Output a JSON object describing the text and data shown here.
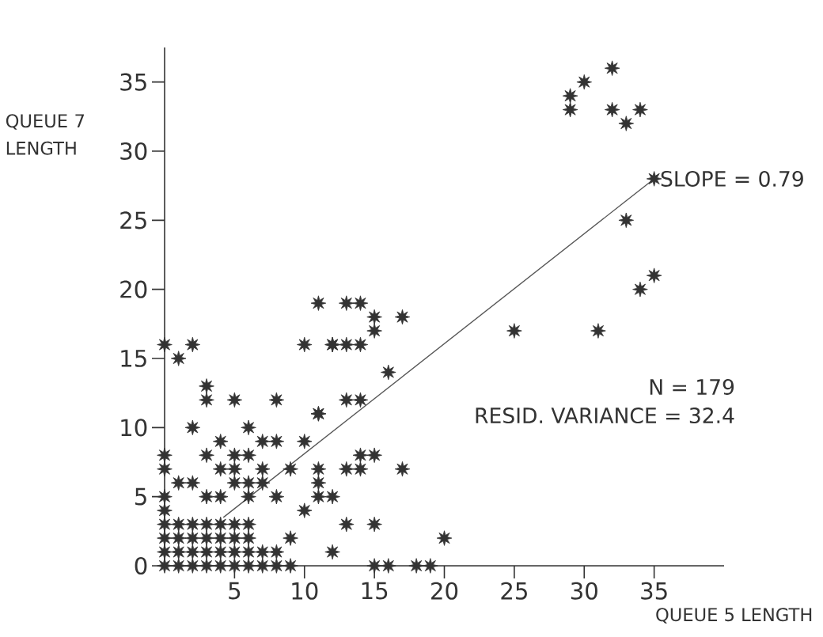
{
  "chart_data": {
    "type": "scatter",
    "xlabel": "QUEUE 5 LENGTH",
    "ylabel": "QUEUE 7 LENGTH",
    "xlim": [
      0,
      40
    ],
    "ylim": [
      0,
      37.5
    ],
    "xticks": [
      5,
      10,
      15,
      20,
      25,
      30,
      35
    ],
    "yticks": [
      0,
      5,
      10,
      15,
      20,
      25,
      30,
      35
    ],
    "grid": false,
    "series": [
      {
        "color": "#333333",
        "marker": "star",
        "x": [
          0,
          2,
          1,
          3,
          3,
          5,
          8,
          2,
          11,
          10,
          12,
          6,
          4,
          7,
          8,
          10,
          0,
          0,
          3,
          5,
          6,
          4,
          5,
          7,
          9,
          1,
          2,
          5,
          6,
          7,
          0,
          3,
          4,
          6,
          8,
          0,
          0,
          1,
          2,
          3,
          4,
          5,
          6,
          0,
          1,
          2,
          3,
          4,
          5,
          6,
          0,
          1,
          2,
          3,
          4,
          5,
          6,
          7,
          8,
          0,
          1,
          2,
          3,
          4,
          5,
          6,
          7,
          8,
          9,
          9,
          10,
          11,
          13,
          14,
          15,
          15,
          17,
          12,
          13,
          14,
          16,
          13,
          14,
          11,
          14,
          15,
          11,
          13,
          14,
          17,
          11,
          11,
          12,
          12,
          13,
          15,
          15,
          16,
          18,
          19,
          20,
          29,
          29,
          30,
          32,
          32,
          33,
          34,
          35,
          33,
          34,
          35,
          25,
          31
        ],
        "values": [
          16,
          16,
          15,
          13,
          12,
          12,
          12,
          10,
          11,
          16,
          16,
          10,
          9,
          9,
          9,
          9,
          8,
          7,
          8,
          8,
          8,
          7,
          7,
          7,
          7,
          6,
          6,
          6,
          6,
          6,
          5,
          5,
          5,
          5,
          5,
          4,
          3,
          3,
          3,
          3,
          3,
          3,
          3,
          2,
          2,
          2,
          2,
          2,
          2,
          2,
          1,
          1,
          1,
          1,
          1,
          1,
          1,
          1,
          1,
          0,
          0,
          0,
          0,
          0,
          0,
          0,
          0,
          0,
          0,
          2,
          4,
          19,
          19,
          19,
          18,
          17,
          18,
          16,
          16,
          16,
          14,
          12,
          12,
          11,
          8,
          8,
          7,
          7,
          7,
          7,
          6,
          5,
          5,
          1,
          3,
          3,
          0,
          0,
          0,
          0,
          2,
          34,
          33,
          35,
          36,
          33,
          32,
          33,
          28,
          25,
          20,
          21,
          17,
          17
        ]
      },
      {
        "type": "line",
        "color": "#555555",
        "marker": "none",
        "x": [
          4.2,
          35
        ],
        "values": [
          3.5,
          28
        ]
      }
    ],
    "annotations": [
      {
        "text": "SLOPE = 0.79",
        "x": 35,
        "y": 28
      },
      "N = 179",
      "RESID. VARIANCE = 32.4"
    ]
  }
}
